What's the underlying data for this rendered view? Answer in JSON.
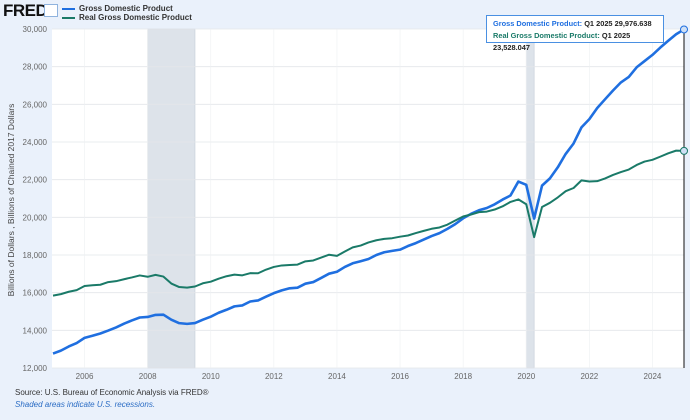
{
  "logo": "FRED",
  "tooltip": {
    "gdp_label": "Gross Domestic Product:",
    "gdp_value": "Q1 2025 29,976.638",
    "real_label": "Real Gross Domestic Product:",
    "real_value": "Q1 2025 23,528.047"
  },
  "source": "Source: U.S. Bureau of Economic Analysis via FRED®",
  "note": "Shaded areas indicate U.S. recessions.",
  "chart_data": {
    "type": "line",
    "title": "",
    "ylabel": "Billions of Dollars , Billions of Chained 2017 Dollars",
    "xlabel": "",
    "ylim": [
      12000,
      30000
    ],
    "xlim": [
      2005.0,
      2025.0
    ],
    "yticks": [
      "12,000",
      "14,000",
      "16,000",
      "18,000",
      "20,000",
      "22,000",
      "24,000",
      "26,000",
      "28,000",
      "30,000"
    ],
    "xticks": [
      "2006",
      "2008",
      "2010",
      "2012",
      "2014",
      "2016",
      "2018",
      "2020",
      "2022",
      "2024"
    ],
    "grid": true,
    "legend": "top-left",
    "recessions": [
      [
        2008.0,
        2009.5
      ],
      [
        2020.0,
        2020.25
      ]
    ],
    "x_start": "2005 Q1",
    "frequency": "quarterly",
    "series": [
      {
        "name": "Gross Domestic Product",
        "color": "#1f6fe0",
        "values": [
          12767,
          12922,
          13142,
          13324,
          13600,
          13710,
          13831,
          13988,
          14156,
          14352,
          14527,
          14682,
          14710,
          14818,
          14830,
          14566,
          14382,
          14343,
          14385,
          14566,
          14726,
          14933,
          15092,
          15272,
          15321,
          15530,
          15587,
          15785,
          15974,
          16122,
          16233,
          16264,
          16476,
          16564,
          16782,
          17008,
          17109,
          17366,
          17560,
          17670,
          17789,
          18000,
          18145,
          18218,
          18285,
          18477,
          18631,
          18818,
          19007,
          19160,
          19385,
          19640,
          19950,
          20185,
          20375,
          20496,
          20693,
          20943,
          21158,
          21900,
          21728,
          19935,
          21684,
          22068,
          22657,
          23368,
          23921,
          24777,
          25215,
          25805,
          26273,
          26735,
          27165,
          27454,
          27968,
          28297,
          28625,
          29017,
          29375,
          29723,
          29976.638
        ]
      },
      {
        "name": "Real Gross Domestic Product",
        "color": "#1a7a68",
        "values": [
          15844,
          15923,
          16048,
          16137,
          16353,
          16396,
          16420,
          16562,
          16611,
          16714,
          16809,
          16915,
          16843,
          16943,
          16854,
          16485,
          16298,
          16269,
          16327,
          16499,
          16583,
          16743,
          16873,
          16960,
          16920,
          17036,
          17031,
          17223,
          17367,
          17445,
          17470,
          17490,
          17663,
          17710,
          17861,
          18016,
          17953,
          18185,
          18406,
          18500,
          18666,
          18782,
          18858,
          18892,
          18972,
          19035,
          19166,
          19280,
          19392,
          19462,
          19612,
          19831,
          20044,
          20150,
          20276,
          20305,
          20415,
          20585,
          20818,
          20952,
          20694,
          18950,
          20548,
          20771,
          21059,
          21390,
          21558,
          21961,
          21904,
          21920,
          22067,
          22252,
          22404,
          22539,
          22781,
          22961,
          23054,
          23224,
          23400,
          23542,
          23528.047
        ]
      }
    ]
  }
}
